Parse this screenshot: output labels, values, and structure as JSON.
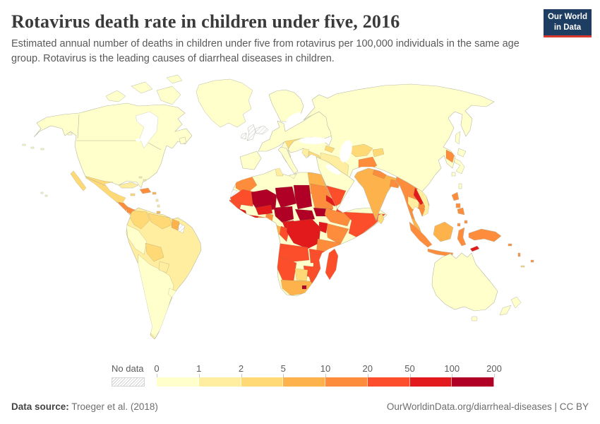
{
  "header": {
    "title": "Rotavirus death rate in children under five, 2016",
    "subtitle": "Estimated annual number of deaths in children under five from rotavirus per 100,000 individuals in the same age group. Rotavirus is the leading causes of diarrheal diseases in children.",
    "logo": {
      "line1": "Our World",
      "line2": "in Data",
      "bg": "#1d3d63",
      "accent": "#d7382e"
    }
  },
  "legend": {
    "no_data_label": "No data",
    "tick_labels": [
      "0",
      "1",
      "2",
      "5",
      "10",
      "20",
      "50",
      "100",
      "200"
    ],
    "bins": [
      {
        "range": "0-1",
        "color": "#FFFFCC"
      },
      {
        "range": "1-2",
        "color": "#FFEDA0"
      },
      {
        "range": "2-5",
        "color": "#FED976"
      },
      {
        "range": "5-10",
        "color": "#FEB24C"
      },
      {
        "range": "10-20",
        "color": "#FD8D3C"
      },
      {
        "range": "20-50",
        "color": "#FC4E2A"
      },
      {
        "range": "50-100",
        "color": "#E31A1C"
      },
      {
        "range": "100-200",
        "color": "#B10026"
      }
    ]
  },
  "footer": {
    "source_label": "Data source:",
    "source_value": " Troeger et al. (2018)",
    "credit": "OurWorldinData.org/diarrheal-diseases | CC BY"
  },
  "chart_data": {
    "type": "choropleth-map",
    "title": "Rotavirus death rate in children under five, 2016",
    "metric": "Deaths per 100,000 children under five",
    "scale_thresholds": [
      0,
      1,
      2,
      5,
      10,
      20,
      50,
      100,
      200
    ],
    "scale_colors": [
      "#FFFFCC",
      "#FFEDA0",
      "#FED976",
      "#FEB24C",
      "#FD8D3C",
      "#FC4E2A",
      "#E31A1C",
      "#B10026"
    ],
    "no_data_style": "gray diagonal hatching",
    "legend_position": "bottom",
    "highest_regions": "Sahel belt (Mali, Niger, Chad, Nigeria, CAR, South Sudan) 100-200",
    "lowest_regions": "North America, Europe, Australia, East Asia 0-1"
  },
  "map": {
    "sea_color": "#ffffff",
    "border_color": "#b9b9a2",
    "palette": {
      "b0": "#FFFFCC",
      "b1": "#FFEDA0",
      "b2": "#FED976",
      "b3": "#FEB24C",
      "b4": "#FD8D3C",
      "b5": "#FC4E2A",
      "b6": "#E31A1C",
      "b7": "#B10026"
    },
    "regions": {
      "canada-usa": "b0",
      "arctic-islands": "b0",
      "greenland": "b0",
      "newfoundland": "b0",
      "vancouver-island": "b0",
      "aleutians": "b0",
      "hawaii": "b0",
      "iceland": "nodata",
      "baja": "b2",
      "mexico": "b2",
      "guatemala": "b4",
      "honduras": "b4",
      "nicaragua": "b2",
      "costa-panama": "b2",
      "cuba": "b1",
      "jamaica": "b2",
      "hispaniola": "b4",
      "puerto-rico": "b3",
      "bahamas": "b1",
      "antilles": "b1",
      "trinidad": "b3",
      "brazil": "b1",
      "colombia": "b2",
      "venezuela": "b2",
      "guyana": "b3",
      "suriname": "nodata",
      "peru": "b0",
      "chile-argentina": "b0",
      "bolivia": "b2",
      "paraguay": "b1",
      "uruguay": "b0",
      "iberia": "b0",
      "europe": "b0",
      "italy": "b0",
      "scandinavia": "b0",
      "uk": "nodata",
      "ireland": "nodata",
      "romania": "b2",
      "eurasia": "b0",
      "syria": "b1",
      "iraq": "b2",
      "iran": "b1",
      "azerbaijan": "b2",
      "turkmen-uzbek": "b2",
      "kyrgyz-tajik": "b2",
      "afghanistan": "b4",
      "pakistan": "b3",
      "north-korea": "b4",
      "japan": "b0",
      "sakhalin": "b0",
      "taiwan": "b0",
      "arabia": "b0",
      "yemen": "b5",
      "india": "b3",
      "nepal": "b4",
      "bangladesh": "b4",
      "sri-lanka": "b2",
      "sea-peninsula": "b4",
      "thailand": "b1",
      "laos": "b6",
      "vietnam": "b1",
      "cambodia": "b4",
      "malaysia": "b3",
      "sumatra": "b4",
      "java": "b4",
      "borneo": "b3",
      "sulawesi": "b4",
      "maluku": "b4",
      "philippines": "b4",
      "new-guinea": "b4",
      "timor": "b6",
      "africa": "b0",
      "morocco": "b4",
      "w-sahara": "nodata",
      "tunisia": "b1",
      "egypt": "b3",
      "mauritania": "b5",
      "senegal": "b5",
      "mali": "b7",
      "guinea": "b6",
      "sierra-liberia": "b6",
      "ivory-coast": "b6",
      "ghana": "b4",
      "togo-benin": "b4",
      "burkina": "b6",
      "niger": "b7",
      "nigeria": "b7",
      "chad": "b7",
      "sudan": "b4",
      "south-sudan": "b7",
      "eritrea": "b6",
      "djibouti": "b5",
      "ethiopia": "b4",
      "somalia": "b5",
      "kenya": "b4",
      "uganda": "b6",
      "car": "b7",
      "cameroon": "b6",
      "gabon": "b3",
      "congo": "b5",
      "drc": "b6",
      "tanzania": "b4",
      "angola": "b5",
      "zambia": "b5",
      "mozambique": "b5",
      "zimbabwe": "b5",
      "namibia": "b5",
      "botswana": "b2",
      "south-africa": "b3",
      "lesotho": "b7",
      "madagascar": "b5",
      "australia": "b0",
      "tasmania": "b0",
      "new-zealand": "b0",
      "solomon": "b4",
      "vanuatu": "b4",
      "fiji": "b4",
      "new-caledonia": "b2"
    }
  }
}
